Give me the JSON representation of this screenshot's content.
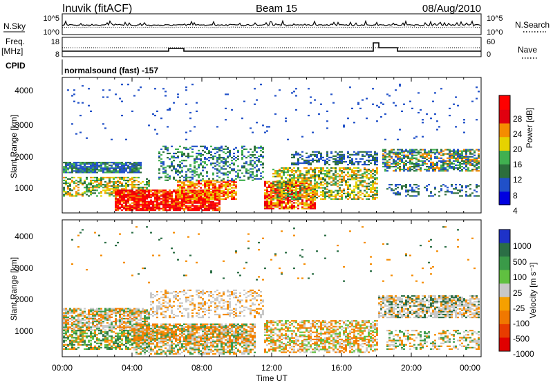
{
  "header": {
    "station": "Inuvik (fitACF)",
    "beam": "Beam 15",
    "date": "08/Aug/2010"
  },
  "sky_panel": {
    "left_label": "N.Sky",
    "right_label": "N.Search",
    "left_ticks": [
      "10^5",
      "10^0"
    ],
    "right_ticks": [
      "10^5",
      "10^0"
    ]
  },
  "freq_panel": {
    "left_label_line1": "Freq.",
    "left_label_line2": "[MHz]",
    "right_label": "Nave",
    "left_ticks": [
      "18",
      "8"
    ],
    "right_ticks": [
      "60",
      "0"
    ]
  },
  "cpid": {
    "label": "CPID",
    "value": "normalsound (fast) -157"
  },
  "chart_data": [
    {
      "type": "heatmap",
      "title": "",
      "quantity": "Power [dB]",
      "xlabel": "Time UT",
      "ylabel": "Slant Range [km]",
      "x_range_hours": [
        0,
        24
      ],
      "x_tick_labels": [
        "00:00",
        "04:00",
        "08:00",
        "12:00",
        "16:00",
        "20:00",
        "00:00"
      ],
      "ylim_km": [
        180,
        4500
      ],
      "y_ticks": [
        1000,
        2000,
        3000,
        4000
      ],
      "colorbar": {
        "labels": [
          "4",
          "8",
          "12",
          "16",
          "20",
          "24",
          "28"
        ],
        "colors": [
          "#0000e0",
          "#2050c8",
          "#2c6e3c",
          "#40b050",
          "#e6d200",
          "#f58c00",
          "#e0000f",
          "#ff0000"
        ],
        "label": "Power [dB]"
      }
    },
    {
      "type": "heatmap",
      "title": "",
      "quantity": "Velocity [m s-1]",
      "xlabel": "Time UT",
      "ylabel": "Slant Range [km]",
      "x_range_hours": [
        0,
        24
      ],
      "x_tick_labels": [
        "00:00",
        "04:00",
        "08:00",
        "12:00",
        "16:00",
        "20:00",
        "00:00"
      ],
      "ylim_km": [
        180,
        4500
      ],
      "y_ticks": [
        1000,
        2000,
        3000,
        4000
      ],
      "colorbar": {
        "labels": [
          "1000",
          "500",
          "100",
          "25",
          "-25",
          "-100",
          "-500",
          "-1000"
        ],
        "colors": [
          "#1e32c8",
          "#2b6e45",
          "#3a9a48",
          "#60c040",
          "#c8c8c8",
          "#f5a000",
          "#f07800",
          "#e83c00",
          "#e00000"
        ],
        "label": "Velocity [m s-1]"
      }
    }
  ],
  "time_axis": {
    "label": "Time UT",
    "ticks": [
      "00:00",
      "04:00",
      "08:00",
      "12:00",
      "16:00",
      "20:00",
      "00:00"
    ]
  },
  "power_panel": {
    "ylabel": "Slant Range [km]",
    "y_ticks": [
      "4000",
      "3000",
      "2000",
      "1000"
    ],
    "cbar_label": "Power [dB]",
    "cbar_ticks": [
      "28",
      "24",
      "20",
      "16",
      "12",
      "8",
      "4"
    ]
  },
  "velocity_panel": {
    "ylabel": "Slant Range [km]",
    "y_ticks": [
      "4000",
      "3000",
      "2000",
      "1000"
    ],
    "cbar_label": "Velocity [m s⁻¹]",
    "cbar_ticks": [
      "1000",
      "500",
      "100",
      "25",
      "-25",
      "-100",
      "-500",
      "-1000"
    ]
  }
}
